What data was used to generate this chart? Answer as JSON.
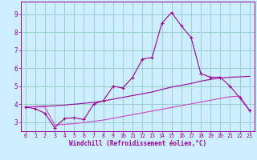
{
  "xlabel": "Windchill (Refroidissement éolien,°C)",
  "background_color": "#cceeff",
  "grid_color": "#99cccc",
  "line_color1": "#990099",
  "line_color2": "#cc44cc",
  "x_ticks": [
    0,
    1,
    2,
    3,
    4,
    5,
    6,
    7,
    8,
    9,
    10,
    11,
    12,
    13,
    14,
    15,
    16,
    17,
    18,
    19,
    20,
    21,
    22,
    23
  ],
  "y_ticks": [
    3,
    4,
    5,
    6,
    7,
    8,
    9
  ],
  "xlim": [
    -0.5,
    23.5
  ],
  "ylim": [
    2.5,
    9.7
  ],
  "curve1_x": [
    0,
    1,
    2,
    3,
    4,
    5,
    6,
    7,
    8,
    9,
    10,
    11,
    12,
    13,
    14,
    15,
    16,
    17,
    18,
    19,
    20,
    21,
    22,
    23
  ],
  "curve1_y": [
    3.85,
    3.75,
    3.5,
    2.7,
    3.2,
    3.25,
    3.15,
    4.0,
    4.2,
    5.0,
    4.9,
    5.5,
    6.5,
    6.6,
    8.5,
    9.1,
    8.35,
    7.7,
    5.7,
    5.5,
    5.5,
    5.0,
    4.35,
    3.65
  ],
  "curve2_x": [
    0,
    1,
    2,
    3,
    4,
    5,
    6,
    7,
    8,
    9,
    10,
    11,
    12,
    13,
    14,
    15,
    16,
    17,
    18,
    19,
    20,
    21,
    22,
    23
  ],
  "curve2_y": [
    3.85,
    3.87,
    3.89,
    3.91,
    3.95,
    4.0,
    4.05,
    4.1,
    4.18,
    4.28,
    4.38,
    4.48,
    4.58,
    4.68,
    4.82,
    4.95,
    5.05,
    5.15,
    5.28,
    5.38,
    5.45,
    5.5,
    5.52,
    5.55
  ],
  "curve3_x": [
    0,
    1,
    2,
    3,
    4,
    5,
    6,
    7,
    8,
    9,
    10,
    11,
    12,
    13,
    14,
    15,
    16,
    17,
    18,
    19,
    20,
    21,
    22,
    23
  ],
  "curve3_y": [
    3.85,
    3.85,
    3.85,
    2.85,
    2.88,
    2.92,
    2.98,
    3.05,
    3.12,
    3.22,
    3.32,
    3.42,
    3.52,
    3.62,
    3.72,
    3.82,
    3.92,
    4.02,
    4.12,
    4.22,
    4.32,
    4.42,
    4.45,
    3.65
  ]
}
